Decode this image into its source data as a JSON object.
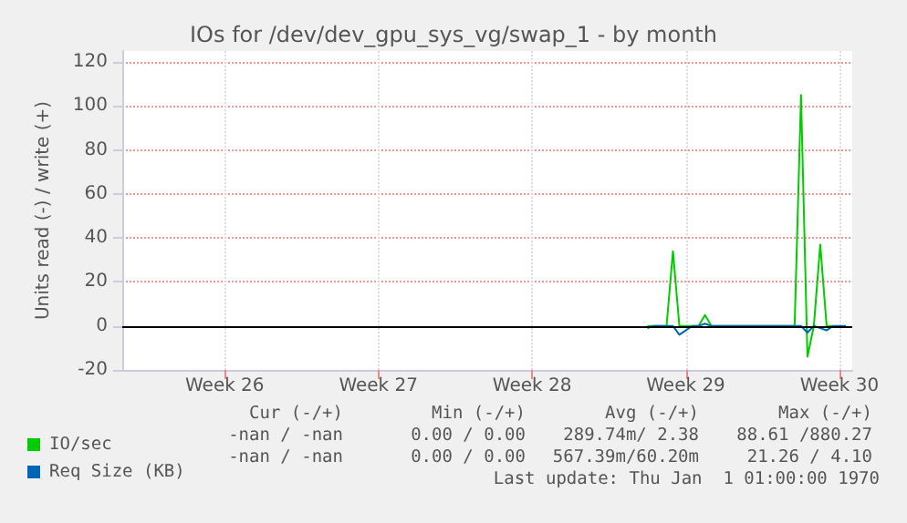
{
  "chart_data": {
    "type": "line",
    "title": "IOs for /dev/dev_gpu_sys_vg/swap_1 - by month",
    "ylabel": "Units read (-) / write (+)",
    "categories": [
      null,
      null,
      null,
      null,
      null,
      null,
      null,
      null,
      null,
      null,
      null,
      null,
      null,
      null,
      null,
      null,
      "Week 26",
      null,
      null,
      null,
      null,
      null,
      null,
      null,
      null,
      null,
      null,
      null,
      null,
      null,
      null,
      null,
      null,
      null,
      null,
      null,
      null,
      null,
      null,
      null,
      "Week 27",
      null,
      null,
      null,
      null,
      null,
      null,
      null,
      null,
      null,
      null,
      null,
      null,
      null,
      null,
      null,
      null,
      null,
      null,
      null,
      null,
      null,
      null,
      null,
      "Week 28",
      null,
      null,
      null,
      null,
      null,
      null,
      null,
      null,
      null,
      null,
      null,
      null,
      null,
      null,
      null,
      null,
      null,
      null,
      null,
      null,
      null,
      null,
      null,
      "Week 29",
      null,
      null,
      null,
      null,
      null,
      null,
      null,
      null,
      null,
      null,
      null,
      null,
      null,
      null,
      null,
      null,
      null,
      null,
      null,
      null,
      null,
      null,
      null,
      "Week 30",
      null,
      null
    ],
    "ylim": [
      -20,
      125
    ],
    "yticks": [
      -20,
      0,
      20,
      40,
      60,
      80,
      100,
      120
    ],
    "grid": true,
    "legend": "bottom left",
    "ref_lines": [
      {
        "axis": "y",
        "value": 0,
        "color": "#000000"
      }
    ],
    "series": [
      {
        "name": "IO/sec",
        "color": "#00cc00",
        "values": [
          null,
          null,
          null,
          null,
          null,
          null,
          null,
          null,
          null,
          null,
          null,
          null,
          null,
          null,
          null,
          null,
          null,
          null,
          null,
          null,
          null,
          null,
          null,
          null,
          null,
          null,
          null,
          null,
          null,
          null,
          null,
          null,
          null,
          null,
          null,
          null,
          null,
          null,
          null,
          null,
          null,
          null,
          null,
          null,
          null,
          null,
          null,
          null,
          null,
          null,
          null,
          null,
          null,
          null,
          null,
          null,
          null,
          null,
          null,
          null,
          null,
          null,
          null,
          null,
          null,
          null,
          null,
          null,
          null,
          null,
          null,
          null,
          null,
          null,
          null,
          null,
          null,
          null,
          null,
          null,
          null,
          null,
          0,
          0,
          0,
          0,
          34,
          0,
          0,
          0,
          0,
          5,
          0,
          0,
          0,
          0,
          0,
          0,
          0,
          0,
          0,
          0,
          0,
          0,
          0,
          0,
          105,
          -14,
          0,
          37,
          0,
          0,
          null,
          null,
          null
        ]
      },
      {
        "name": "Req Size (KB)",
        "color": "#0066b3",
        "values": [
          null,
          null,
          null,
          null,
          null,
          null,
          null,
          null,
          null,
          null,
          null,
          null,
          null,
          null,
          null,
          null,
          null,
          null,
          null,
          null,
          null,
          null,
          null,
          null,
          null,
          null,
          null,
          null,
          null,
          null,
          null,
          null,
          null,
          null,
          null,
          null,
          null,
          null,
          null,
          null,
          null,
          null,
          null,
          null,
          null,
          null,
          null,
          null,
          null,
          null,
          null,
          null,
          null,
          null,
          null,
          null,
          null,
          null,
          null,
          null,
          null,
          null,
          null,
          null,
          null,
          null,
          null,
          null,
          null,
          null,
          null,
          null,
          null,
          null,
          null,
          null,
          null,
          null,
          null,
          null,
          null,
          null,
          -1,
          0,
          0,
          0,
          0,
          -4,
          -2,
          0,
          0,
          1,
          0,
          0,
          0,
          0,
          0,
          0,
          0,
          0,
          0,
          0,
          0,
          0,
          0,
          0,
          0,
          -3,
          0,
          -1,
          -2,
          0,
          0,
          0,
          null
        ]
      }
    ],
    "annotations": [
      "Cur (-/+)",
      "Min (-/+)",
      "Avg (-/+)",
      "Max (-/+)",
      "-nan / -nan",
      "0.00 / 0.00",
      "289.74m/ 2.38",
      "88.61 /880.27",
      "-nan / -nan",
      "0.00 / 0.00",
      "567.39m/60.20m",
      "21.26 / 4.10",
      "Last update: Thu Jan  1 01:00:00 1970"
    ]
  }
}
